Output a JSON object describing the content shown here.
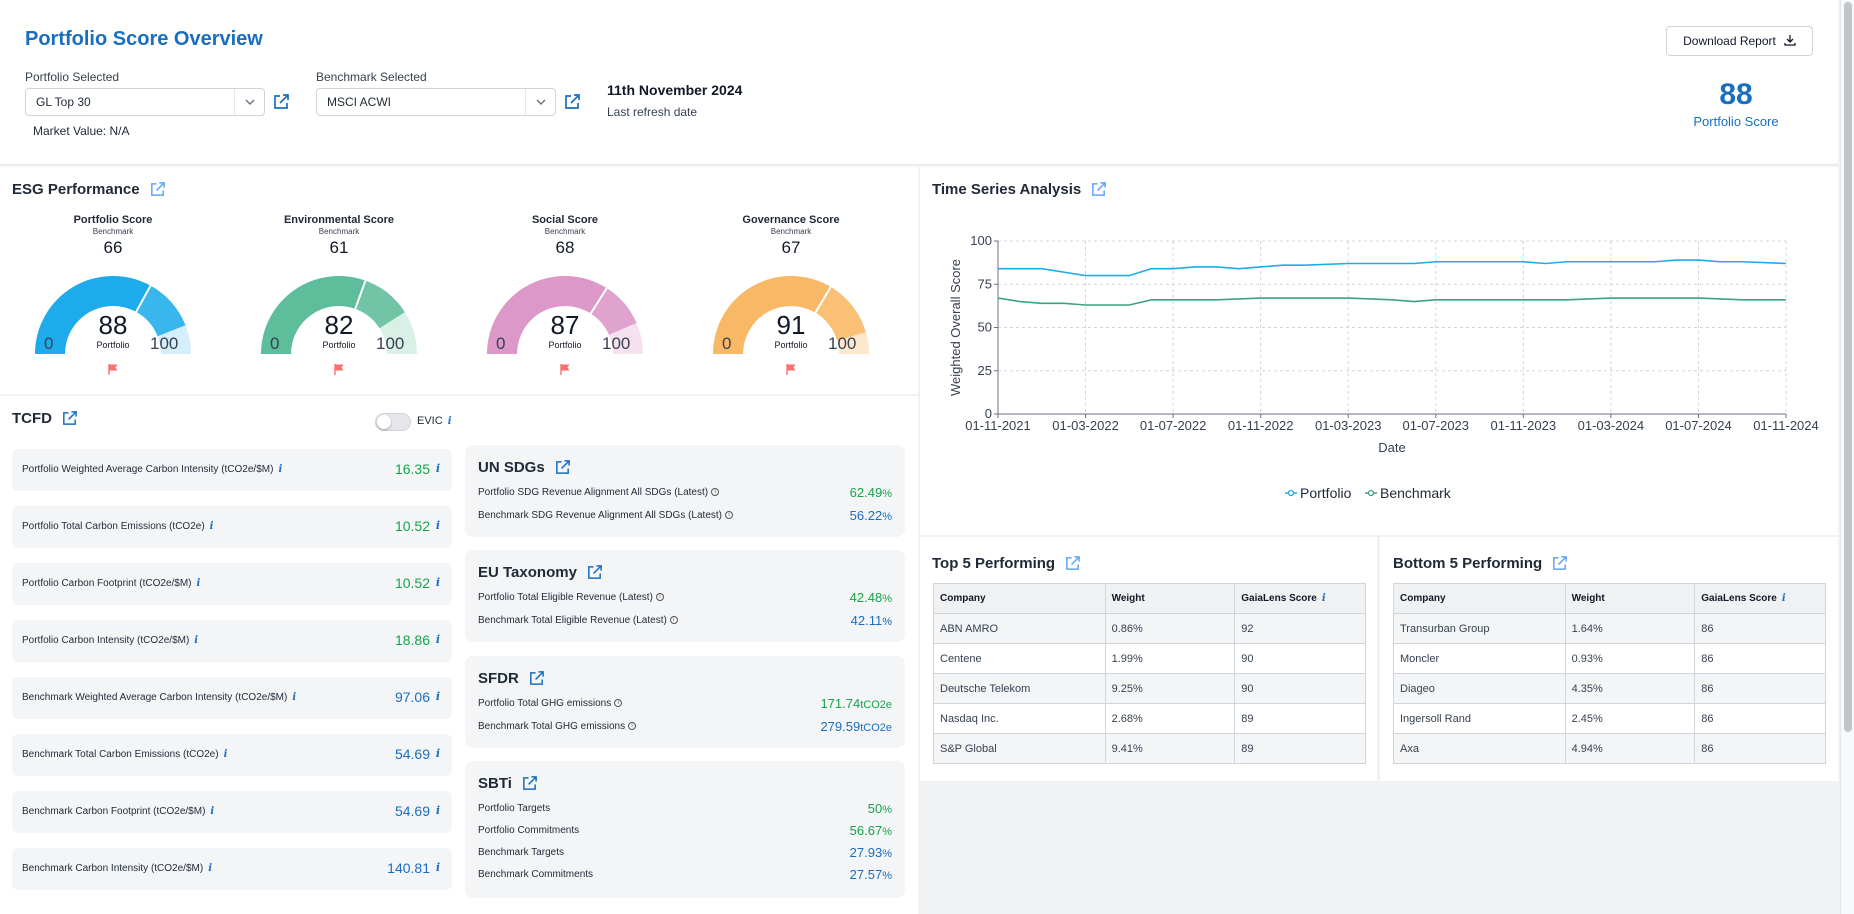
{
  "header": {
    "title": "Portfolio Score Overview",
    "portfolio_label": "Portfolio Selected",
    "portfolio_value": "GL Top 30",
    "benchmark_label": "Benchmark Selected",
    "benchmark_value": "MSCI ACWI",
    "market_value": "Market Value: N/A",
    "refresh_date": "11th November 2024",
    "refresh_label": "Last refresh date",
    "download_label": "Download Report",
    "portfolio_score": "88",
    "portfolio_score_label": "Portfolio Score"
  },
  "esg": {
    "title": "ESG Performance",
    "benchmark_word": "Benchmark",
    "portfolio_word": "Portfolio",
    "min": "0",
    "max": "100",
    "gauges": [
      {
        "title": "Portfolio Score",
        "benchmark": "66",
        "value": "88",
        "value_num": 88,
        "benchmark_num": 66,
        "color": "#1eabeb",
        "light": "#d4eefb"
      },
      {
        "title": "Environmental Score",
        "benchmark": "61",
        "value": "82",
        "value_num": 82,
        "benchmark_num": 61,
        "color": "#5ebd9a",
        "light": "#d9f0e6"
      },
      {
        "title": "Social Score",
        "benchmark": "68",
        "value": "87",
        "value_num": 87,
        "benchmark_num": 68,
        "color": "#dc98c8",
        "light": "#f6e2ef"
      },
      {
        "title": "Governance Score",
        "benchmark": "67",
        "value": "91",
        "value_num": 91,
        "benchmark_num": 67,
        "color": "#f8b866",
        "light": "#fde8cc"
      }
    ]
  },
  "tcfd": {
    "title": "TCFD",
    "toggle_label": "EVIC",
    "rows": [
      {
        "label": "Portfolio Weighted Average Carbon Intensity (tCO2e/$M)",
        "value": "16.35",
        "color": "green"
      },
      {
        "label": "Portfolio Total Carbon Emissions (tCO2e)",
        "value": "10.52",
        "color": "green"
      },
      {
        "label": "Portfolio Carbon Footprint (tCO2e/$M)",
        "value": "10.52",
        "color": "green"
      },
      {
        "label": "Portfolio Carbon Intensity (tCO2e/$M)",
        "value": "18.86",
        "color": "green"
      },
      {
        "label": "Benchmark Weighted Average Carbon Intensity (tCO2e/$M)",
        "value": "97.06",
        "color": "blue"
      },
      {
        "label": "Benchmark Total Carbon Emissions (tCO2e)",
        "value": "54.69",
        "color": "blue"
      },
      {
        "label": "Benchmark Carbon Footprint (tCO2e/$M)",
        "value": "54.69",
        "color": "blue"
      },
      {
        "label": "Benchmark Carbon Intensity (tCO2e/$M)",
        "value": "140.81",
        "color": "blue"
      }
    ]
  },
  "un_sdgs": {
    "title": "UN SDGs",
    "rows": [
      {
        "label": "Portfolio SDG Revenue Alignment All SDGs (Latest)",
        "value": "62.49",
        "unit": "%"
      },
      {
        "label": "Benchmark SDG Revenue Alignment All SDGs (Latest)",
        "value": "56.22",
        "unit": "%"
      }
    ]
  },
  "eu_taxonomy": {
    "title": "EU Taxonomy",
    "rows": [
      {
        "label": "Portfolio Total Eligible Revenue (Latest)",
        "value": "42.48",
        "unit": "%"
      },
      {
        "label": "Benchmark Total Eligible Revenue (Latest)",
        "value": "42.11",
        "unit": "%"
      }
    ]
  },
  "sfdr": {
    "title": "SFDR",
    "rows": [
      {
        "label": "Portfolio Total GHG emissions",
        "value": "171.74",
        "unit": "tCO2e"
      },
      {
        "label": "Benchmark Total GHG emissions",
        "value": "279.59",
        "unit": "tCO2e"
      }
    ]
  },
  "sbti": {
    "title": "SBTi",
    "rows": [
      {
        "label": "Portfolio Targets",
        "value": "50",
        "unit": "%"
      },
      {
        "label": "Portfolio Commitments",
        "value": "56.67",
        "unit": "%"
      },
      {
        "label": "Benchmark Targets",
        "value": "27.93",
        "unit": "%"
      },
      {
        "label": "Benchmark Commitments",
        "value": "27.57",
        "unit": "%"
      }
    ]
  },
  "time_series": {
    "title": "Time Series Analysis",
    "legend_portfolio": "Portfolio",
    "legend_benchmark": "Benchmark"
  },
  "chart_data": {
    "type": "line",
    "title": "Time Series Analysis",
    "xlabel": "Date",
    "ylabel": "Weighted Overall Score",
    "ylim": [
      0,
      100
    ],
    "y_ticks": [
      "0",
      "25",
      "50",
      "75",
      "100"
    ],
    "x_tick_labels": [
      "01-11-2021",
      "01-03-2022",
      "01-07-2022",
      "01-11-2022",
      "01-03-2023",
      "01-07-2023",
      "01-11-2023",
      "01-03-2024",
      "01-07-2024",
      "01-11-2024"
    ],
    "x_months_from_start": [
      0,
      4,
      8,
      12,
      16,
      20,
      24,
      28,
      32,
      36
    ],
    "series": [
      {
        "name": "Portfolio",
        "color": "#1eabeb",
        "x": [
          0,
          2,
          3,
          4,
          5,
          6,
          7,
          8,
          9,
          10,
          11,
          12,
          13,
          14,
          16,
          17,
          18,
          19,
          20,
          22,
          24,
          25,
          26,
          28,
          30,
          31,
          32,
          33,
          34,
          36
        ],
        "values": [
          84,
          84,
          82,
          80,
          80,
          80,
          84,
          84,
          85,
          85,
          84,
          85,
          86,
          86,
          87,
          87,
          87,
          87,
          88,
          88,
          88,
          87,
          88,
          88,
          88,
          89,
          89,
          88,
          88,
          87
        ]
      },
      {
        "name": "Benchmark",
        "color": "#3aa57a",
        "x": [
          0,
          1,
          2,
          3,
          4,
          5,
          6,
          7,
          8,
          10,
          12,
          14,
          16,
          18,
          19,
          20,
          22,
          24,
          26,
          28,
          30,
          32,
          34,
          36
        ],
        "values": [
          67,
          65,
          64,
          64,
          63,
          63,
          63,
          66,
          66,
          66,
          67,
          67,
          67,
          66,
          65,
          66,
          66,
          66,
          66,
          67,
          67,
          67,
          66,
          66
        ]
      }
    ]
  },
  "top5": {
    "title": "Top 5 Performing",
    "headers": [
      "Company",
      "Weight",
      "GaiaLens Score"
    ],
    "rows": [
      [
        "ABN AMRO",
        "0.86%",
        "92"
      ],
      [
        "Centene",
        "1.99%",
        "90"
      ],
      [
        "Deutsche Telekom",
        "9.25%",
        "90"
      ],
      [
        "Nasdaq Inc.",
        "2.68%",
        "89"
      ],
      [
        "S&P Global",
        "9.41%",
        "89"
      ]
    ]
  },
  "bottom5": {
    "title": "Bottom 5 Performing",
    "headers": [
      "Company",
      "Weight",
      "GaiaLens Score"
    ],
    "rows": [
      [
        "Transurban Group",
        "1.64%",
        "86"
      ],
      [
        "Moncler",
        "0.93%",
        "86"
      ],
      [
        "Diageo",
        "4.35%",
        "86"
      ],
      [
        "Ingersoll Rand",
        "2.45%",
        "86"
      ],
      [
        "Axa",
        "4.94%",
        "86"
      ]
    ]
  },
  "colors": {
    "accent": "#1a6ec0",
    "green": "#16a34a",
    "flag": "#f87171"
  }
}
